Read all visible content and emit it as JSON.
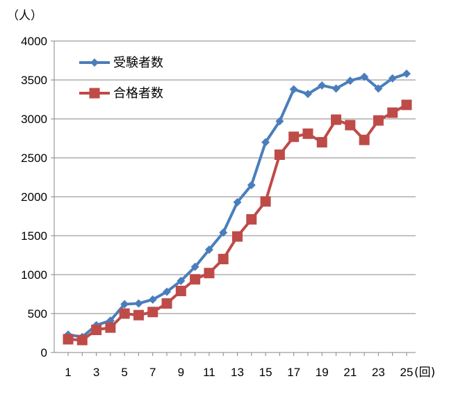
{
  "chart_data": {
    "type": "line",
    "y_unit_label": "（人）",
    "x_unit_label": "(回)",
    "ylim": [
      0,
      4000
    ],
    "y_ticks": [
      0,
      500,
      1000,
      1500,
      2000,
      2500,
      3000,
      3500,
      4000
    ],
    "x_tick_labels": [
      "1",
      "3",
      "5",
      "7",
      "9",
      "11",
      "13",
      "15",
      "17",
      "19",
      "21",
      "23",
      "25"
    ],
    "grid": "horizontal",
    "legend_position": "top-left",
    "x": [
      1,
      2,
      3,
      4,
      5,
      6,
      7,
      8,
      9,
      10,
      11,
      12,
      13,
      14,
      15,
      16,
      17,
      18,
      19,
      20,
      21,
      22,
      23,
      24,
      25
    ],
    "series": [
      {
        "name": "受験者数",
        "color": "#4a7ebb",
        "marker": "diamond",
        "values": [
          230,
          200,
          350,
          410,
          620,
          630,
          680,
          780,
          920,
          1100,
          1320,
          1540,
          1930,
          2150,
          2700,
          2970,
          3380,
          3320,
          3430,
          3390,
          3490,
          3540,
          3390,
          3520,
          3580
        ]
      },
      {
        "name": "合格者数",
        "color": "#be4b48",
        "marker": "square",
        "values": [
          170,
          160,
          290,
          320,
          500,
          480,
          520,
          630,
          790,
          940,
          1020,
          1200,
          1490,
          1710,
          1940,
          2540,
          2770,
          2810,
          2700,
          2990,
          2920,
          2730,
          2980,
          3080,
          3180
        ]
      }
    ]
  }
}
